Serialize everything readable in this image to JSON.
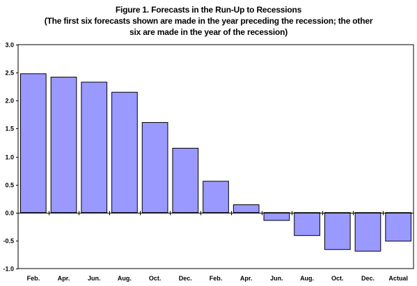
{
  "chart_data": {
    "type": "bar",
    "title_lines": [
      "Figure 1. Forecasts in the Run-Up to Recessions",
      "(The first six forecasts shown are made in the year preceding the recession; the other",
      "six are made in the year of the recession)"
    ],
    "categories": [
      "Feb.",
      "Apr.",
      "Jun.",
      "Aug.",
      "Oct.",
      "Dec.",
      "Feb.",
      "Apr.",
      "Jun.",
      "Aug.",
      "Oct.",
      "Dec.",
      "Actual"
    ],
    "values": [
      2.48,
      2.42,
      2.33,
      2.15,
      1.61,
      1.15,
      0.56,
      0.14,
      -0.14,
      -0.41,
      -0.66,
      -0.69,
      -0.51
    ],
    "ylim": [
      -1.0,
      3.0
    ],
    "yticks": [
      "-1.0",
      "-0.5",
      "0.0",
      "0.5",
      "1.0",
      "1.5",
      "2.0",
      "2.5",
      "3.0"
    ],
    "xlabel": "",
    "ylabel": "",
    "grid": false,
    "legend": "none",
    "bar_color": "#9999ff",
    "bar_edge_color": "#000000"
  }
}
